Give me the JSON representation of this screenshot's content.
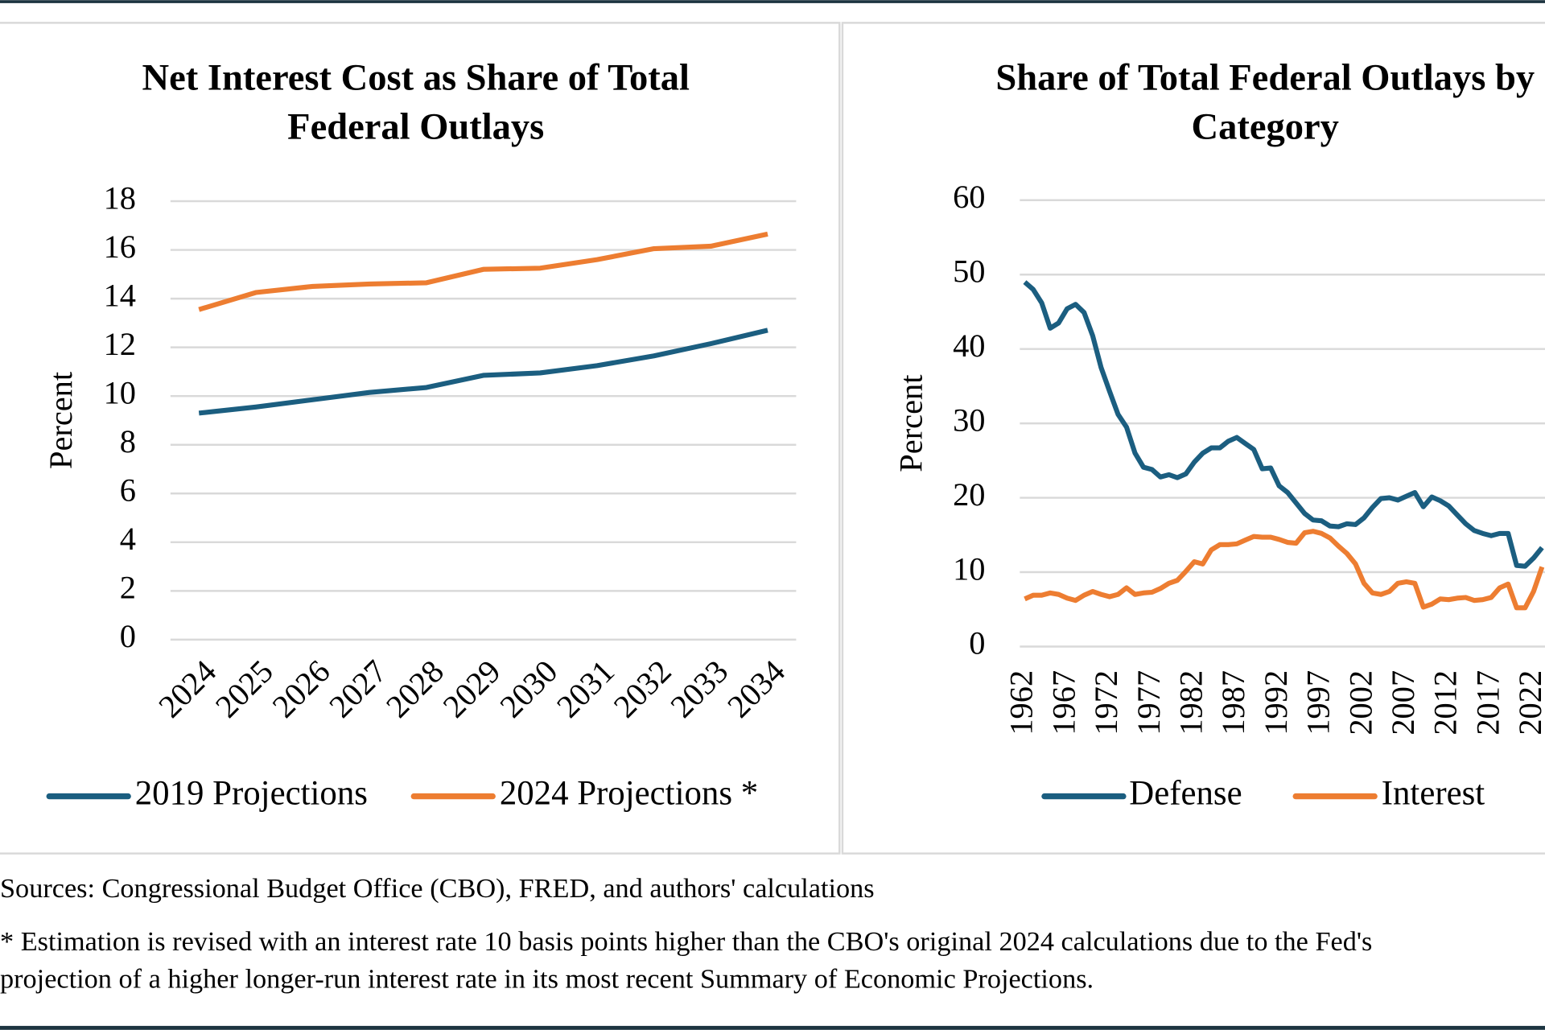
{
  "chart_data": [
    {
      "type": "line",
      "title": [
        "Net Interest Cost as Share of Total",
        "Federal Outlays"
      ],
      "y_label": "Percent",
      "categories": [
        "2024",
        "2025",
        "2026",
        "2027",
        "2028",
        "2029",
        "2030",
        "2031",
        "2032",
        "2033",
        "2034"
      ],
      "series": [
        {
          "name": "2019 Projections",
          "color": "#1b5e80",
          "values": [
            9.3,
            9.55,
            9.85,
            10.15,
            10.35,
            10.85,
            10.95,
            11.25,
            11.65,
            12.15,
            12.7
          ]
        },
        {
          "name": "2024 Projections *",
          "color": "#ed7d31",
          "values": [
            13.55,
            14.25,
            14.5,
            14.6,
            14.65,
            15.2,
            15.25,
            15.6,
            16.05,
            16.15,
            16.65
          ]
        }
      ],
      "ylim": [
        0,
        18
      ],
      "yticks": [
        0,
        2,
        4,
        6,
        8,
        10,
        12,
        14,
        16,
        18
      ],
      "grid": true,
      "legend": "bottom"
    },
    {
      "type": "line",
      "title": [
        "Share of Total Federal Outlays by",
        "Category"
      ],
      "y_label": "Percent",
      "x": [
        1962,
        1963,
        1964,
        1965,
        1966,
        1967,
        1968,
        1969,
        1970,
        1971,
        1972,
        1973,
        1974,
        1975,
        1976,
        1977,
        1978,
        1979,
        1980,
        1981,
        1982,
        1983,
        1984,
        1985,
        1986,
        1987,
        1988,
        1989,
        1990,
        1991,
        1992,
        1993,
        1994,
        1995,
        1996,
        1997,
        1998,
        1999,
        2000,
        2001,
        2002,
        2003,
        2004,
        2005,
        2006,
        2007,
        2008,
        2009,
        2010,
        2011,
        2012,
        2013,
        2014,
        2015,
        2016,
        2017,
        2018,
        2019,
        2020,
        2021,
        2022,
        2023
      ],
      "series": [
        {
          "name": "Defense",
          "color": "#1b5e80",
          "values": [
            49.0,
            48.0,
            46.2,
            42.8,
            43.5,
            45.4,
            46.0,
            44.9,
            41.8,
            37.5,
            34.3,
            31.2,
            29.5,
            26.0,
            24.1,
            23.8,
            22.8,
            23.1,
            22.7,
            23.2,
            24.8,
            26.0,
            26.7,
            26.7,
            27.6,
            28.1,
            27.3,
            26.5,
            23.9,
            24.0,
            21.6,
            20.7,
            19.3,
            17.9,
            17.0,
            16.9,
            16.2,
            16.1,
            16.5,
            16.4,
            17.3,
            18.7,
            19.9,
            20.0,
            19.7,
            20.2,
            20.7,
            18.8,
            20.1,
            19.6,
            18.9,
            17.7,
            16.5,
            15.6,
            15.2,
            14.9,
            15.2,
            15.2,
            10.9,
            10.8,
            11.9,
            13.3
          ]
        },
        {
          "name": "Interest",
          "color": "#ed7d31",
          "values": [
            6.4,
            6.9,
            6.9,
            7.2,
            7.0,
            6.5,
            6.2,
            6.9,
            7.4,
            7.0,
            6.7,
            7.0,
            7.9,
            7.0,
            7.2,
            7.3,
            7.8,
            8.5,
            8.9,
            10.1,
            11.4,
            11.1,
            13.0,
            13.7,
            13.7,
            13.8,
            14.3,
            14.8,
            14.7,
            14.7,
            14.4,
            14.0,
            13.9,
            15.3,
            15.5,
            15.2,
            14.6,
            13.5,
            12.5,
            11.1,
            8.5,
            7.2,
            7.0,
            7.4,
            8.5,
            8.7,
            8.5,
            5.3,
            5.7,
            6.4,
            6.3,
            6.5,
            6.6,
            6.2,
            6.3,
            6.6,
            7.9,
            8.4,
            5.2,
            5.2,
            7.4,
            10.7
          ]
        }
      ],
      "xlim": [
        1962,
        2023
      ],
      "xticks": [
        1962,
        1967,
        1972,
        1977,
        1982,
        1987,
        1992,
        1997,
        2002,
        2007,
        2012,
        2017,
        2022
      ],
      "ylim": [
        0,
        60
      ],
      "yticks": [
        0,
        10,
        20,
        30,
        40,
        50,
        60
      ],
      "grid": true,
      "legend": "bottom"
    }
  ],
  "notes": [
    "Sources: Congressional Budget Office (CBO), FRED, and authors' calculations",
    "* Estimation is revised with an interest rate 10 basis points higher than the CBO's original 2024 calculations due to the Fed's",
    "projection of a higher longer-run interest rate in its most recent Summary of Economic Projections."
  ]
}
